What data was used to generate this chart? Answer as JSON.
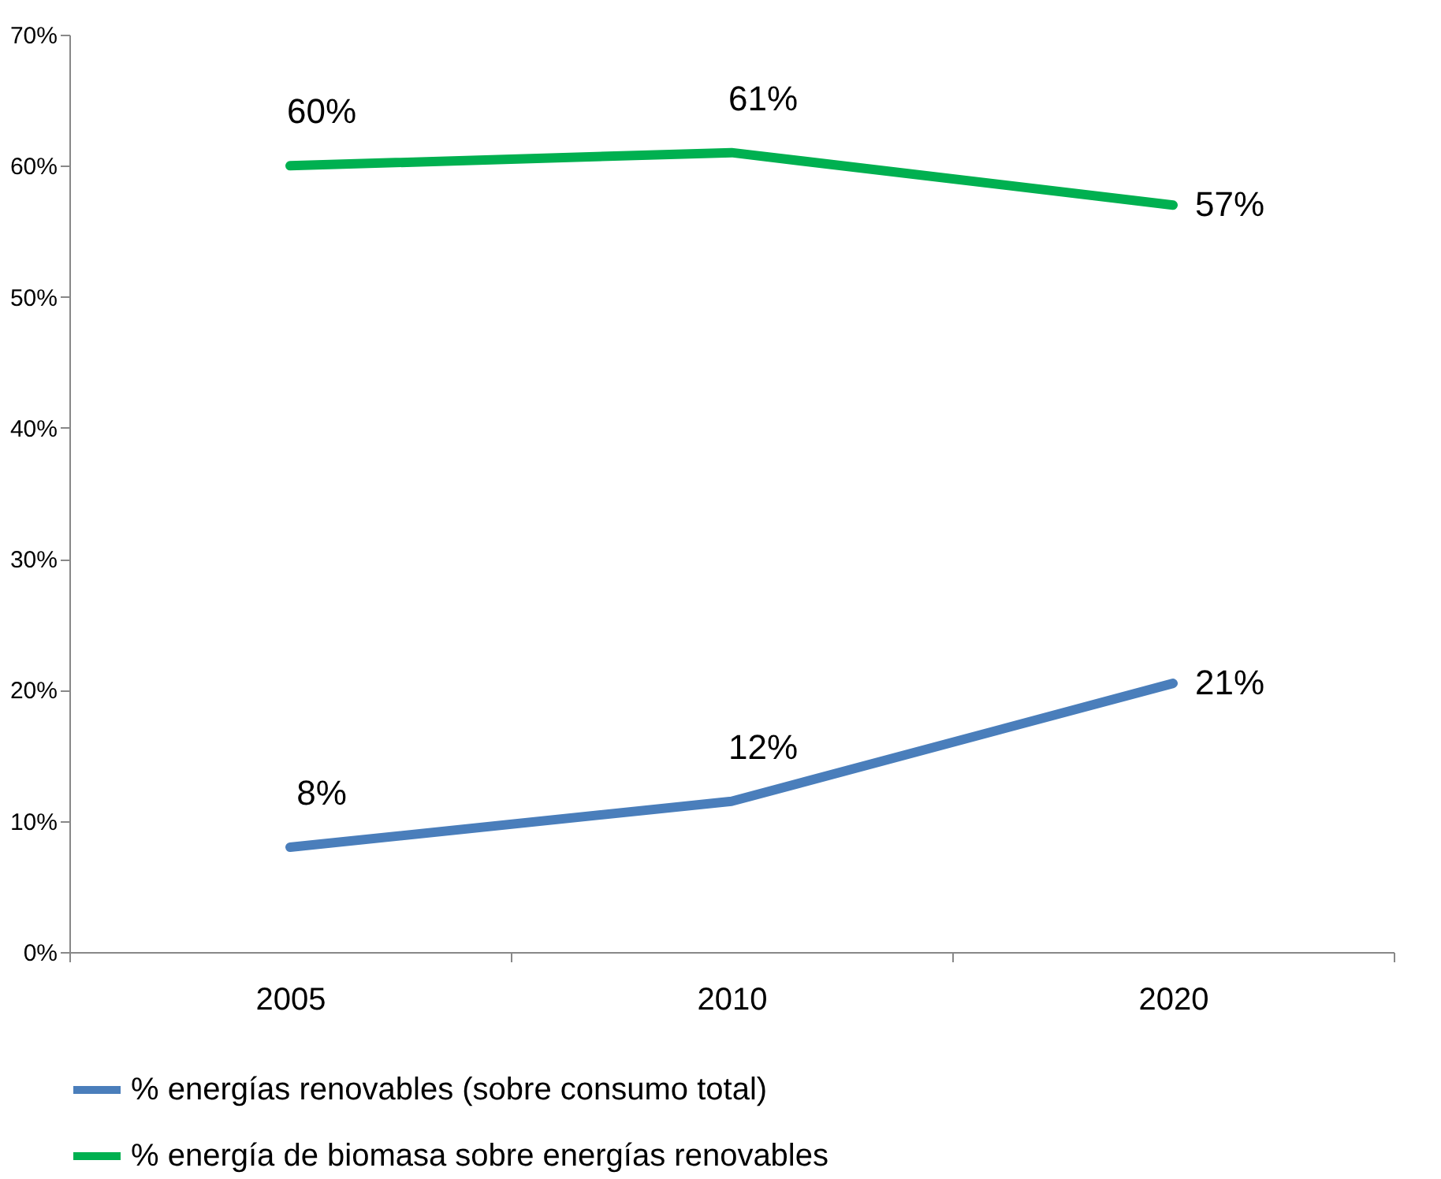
{
  "chart_data": {
    "type": "line",
    "categories": [
      "2005",
      "2010",
      "2020"
    ],
    "series": [
      {
        "name": "% energías renovables (sobre consumo total)",
        "color": "#4a7ebb",
        "values": [
          8,
          11.5,
          20.5
        ],
        "value_labels": [
          "8%",
          "12%",
          "21%"
        ]
      },
      {
        "name": "% energía de biomasa sobre energías renovables",
        "color": "#00b050",
        "values": [
          60,
          61,
          57
        ],
        "value_labels": [
          "60%",
          "61%",
          "57%"
        ]
      }
    ],
    "ylim": [
      0,
      70
    ],
    "yticks": [
      {
        "value": 0,
        "label": "0%"
      },
      {
        "value": 10,
        "label": "10%"
      },
      {
        "value": 20,
        "label": "20%"
      },
      {
        "value": 30,
        "label": "30%"
      },
      {
        "value": 40,
        "label": "40%"
      },
      {
        "value": 50,
        "label": "50%"
      },
      {
        "value": 60,
        "label": "60%"
      },
      {
        "value": 70,
        "label": "70%"
      }
    ],
    "legend": "bottom",
    "line_style": "solid",
    "marker": "none",
    "grid": false
  }
}
